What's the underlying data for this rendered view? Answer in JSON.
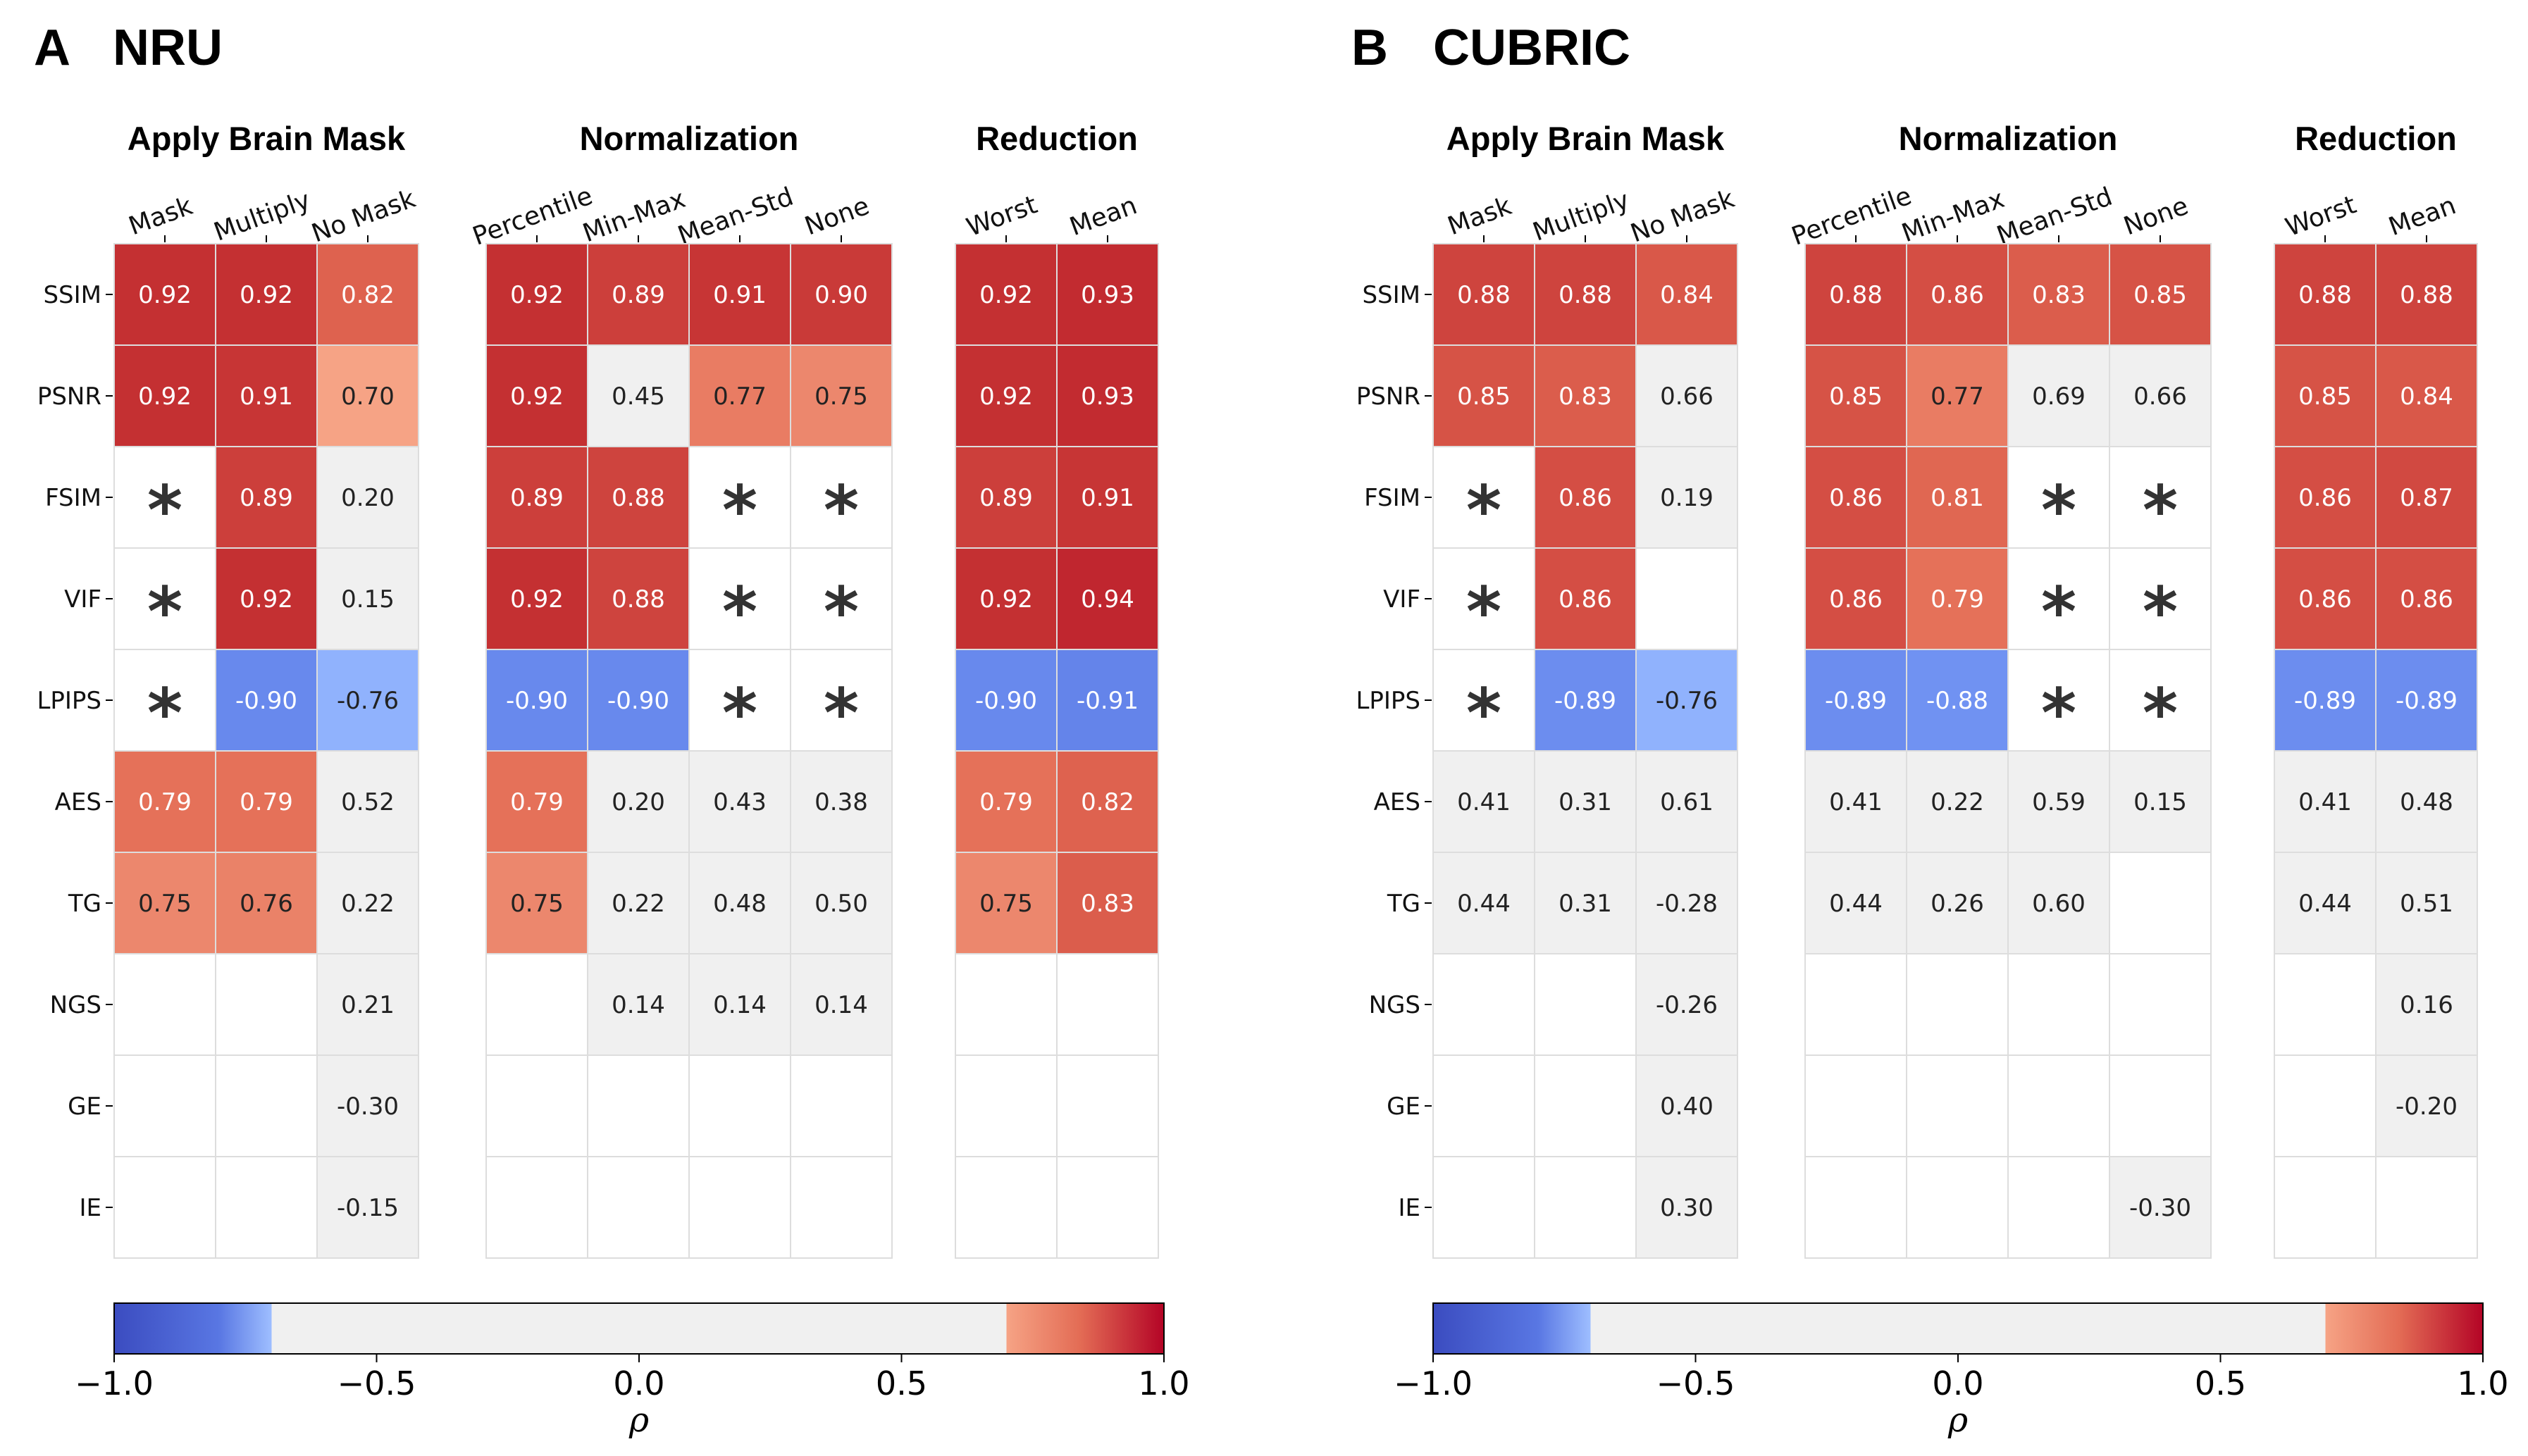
{
  "chart_data": [
    {
      "type": "heatmap",
      "panel_letter": "A",
      "title": "NRU",
      "rows": [
        "SSIM",
        "PSNR",
        "FSIM",
        "VIF",
        "LPIPS",
        "AES",
        "TG",
        "NGS",
        "GE",
        "IE"
      ],
      "star_marker": "*",
      "groups": [
        {
          "title": "Apply Brain Mask",
          "columns": [
            "Mask",
            "Multiply",
            "No Mask"
          ],
          "values": [
            [
              "0.92",
              "0.92",
              "0.82"
            ],
            [
              "0.92",
              "0.91",
              "0.70"
            ],
            [
              "*",
              "0.89",
              "0.20"
            ],
            [
              "*",
              "0.92",
              "0.15"
            ],
            [
              "*",
              "-0.90",
              "-0.76"
            ],
            [
              "0.79",
              "0.79",
              "0.52"
            ],
            [
              "0.75",
              "0.76",
              "0.22"
            ],
            [
              "",
              "",
              "0.21"
            ],
            [
              "",
              "",
              "-0.30"
            ],
            [
              "",
              "",
              "-0.15"
            ]
          ]
        },
        {
          "title": "Normalization",
          "columns": [
            "Percentile",
            "Min-Max",
            "Mean-Std",
            "None"
          ],
          "values": [
            [
              "0.92",
              "0.89",
              "0.91",
              "0.90"
            ],
            [
              "0.92",
              "0.45",
              "0.77",
              "0.75"
            ],
            [
              "0.89",
              "0.88",
              "*",
              "*"
            ],
            [
              "0.92",
              "0.88",
              "*",
              "*"
            ],
            [
              "-0.90",
              "-0.90",
              "*",
              "*"
            ],
            [
              "0.79",
              "0.20",
              "0.43",
              "0.38"
            ],
            [
              "0.75",
              "0.22",
              "0.48",
              "0.50"
            ],
            [
              "",
              "0.14",
              "0.14",
              "0.14"
            ],
            [
              "",
              "",
              "",
              ""
            ],
            [
              "",
              "",
              "",
              ""
            ]
          ]
        },
        {
          "title": "Reduction",
          "columns": [
            "Worst",
            "Mean"
          ],
          "values": [
            [
              "0.92",
              "0.93"
            ],
            [
              "0.92",
              "0.93"
            ],
            [
              "0.89",
              "0.91"
            ],
            [
              "0.92",
              "0.94"
            ],
            [
              "-0.90",
              "-0.91"
            ],
            [
              "0.79",
              "0.82"
            ],
            [
              "0.75",
              "0.83"
            ],
            [
              "",
              ""
            ],
            [
              "",
              ""
            ],
            [
              "",
              ""
            ]
          ]
        }
      ],
      "colorbar": {
        "min": -1.0,
        "max": 1.0,
        "ticks": [
          "−1.0",
          "−0.5",
          "0.0",
          "0.5",
          "1.0"
        ],
        "label": "ρ"
      }
    },
    {
      "type": "heatmap",
      "panel_letter": "B",
      "title": "CUBRIC",
      "rows": [
        "SSIM",
        "PSNR",
        "FSIM",
        "VIF",
        "LPIPS",
        "AES",
        "TG",
        "NGS",
        "GE",
        "IE"
      ],
      "star_marker": "*",
      "groups": [
        {
          "title": "Apply Brain Mask",
          "columns": [
            "Mask",
            "Multiply",
            "No Mask"
          ],
          "values": [
            [
              "0.88",
              "0.88",
              "0.84"
            ],
            [
              "0.85",
              "0.83",
              "0.66"
            ],
            [
              "*",
              "0.86",
              "0.19"
            ],
            [
              "*",
              "0.86",
              ""
            ],
            [
              "*",
              "-0.89",
              "-0.76"
            ],
            [
              "0.41",
              "0.31",
              "0.61"
            ],
            [
              "0.44",
              "0.31",
              "-0.28"
            ],
            [
              "",
              "",
              "-0.26"
            ],
            [
              "",
              "",
              "0.40"
            ],
            [
              "",
              "",
              "0.30"
            ]
          ]
        },
        {
          "title": "Normalization",
          "columns": [
            "Percentile",
            "Min-Max",
            "Mean-Std",
            "None"
          ],
          "values": [
            [
              "0.88",
              "0.86",
              "0.83",
              "0.85"
            ],
            [
              "0.85",
              "0.77",
              "0.69",
              "0.66"
            ],
            [
              "0.86",
              "0.81",
              "*",
              "*"
            ],
            [
              "0.86",
              "0.79",
              "*",
              "*"
            ],
            [
              "-0.89",
              "-0.88",
              "*",
              "*"
            ],
            [
              "0.41",
              "0.22",
              "0.59",
              "0.15"
            ],
            [
              "0.44",
              "0.26",
              "0.60",
              ""
            ],
            [
              "",
              "",
              "",
              ""
            ],
            [
              "",
              "",
              "",
              ""
            ],
            [
              "",
              "",
              "",
              "-0.30"
            ]
          ]
        },
        {
          "title": "Reduction",
          "columns": [
            "Worst",
            "Mean"
          ],
          "values": [
            [
              "0.88",
              "0.88"
            ],
            [
              "0.85",
              "0.84"
            ],
            [
              "0.86",
              "0.87"
            ],
            [
              "0.86",
              "0.86"
            ],
            [
              "-0.89",
              "-0.89"
            ],
            [
              "0.41",
              "0.48"
            ],
            [
              "0.44",
              "0.51"
            ],
            [
              "",
              "0.16"
            ],
            [
              "",
              "-0.20"
            ],
            [
              "",
              ""
            ]
          ]
        }
      ],
      "colorbar": {
        "min": -1.0,
        "max": 1.0,
        "ticks": [
          "−1.0",
          "−0.5",
          "0.0",
          "0.5",
          "1.0"
        ],
        "label": "ρ"
      }
    }
  ],
  "colors": {
    "neutral": "#f0f0f0",
    "cell_border": "#dddddd",
    "negative_stops": [
      "#3b4cc0",
      "#5977e3",
      "#7b9ff9",
      "#9ebeff"
    ],
    "positive_stops": [
      "#f6a385",
      "#e36c55",
      "#c32e31",
      "#b40426"
    ]
  }
}
